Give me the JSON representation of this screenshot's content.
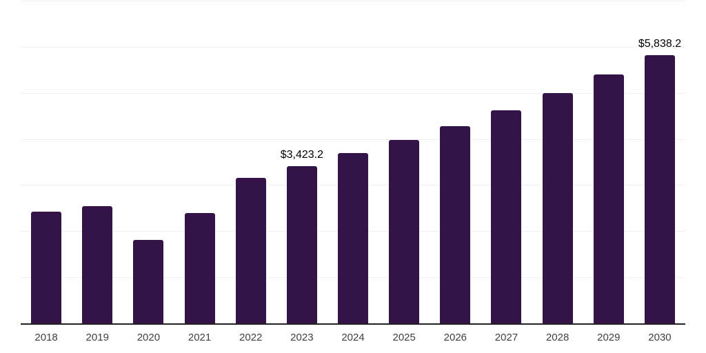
{
  "chart_data": {
    "type": "bar",
    "title": "",
    "categories": [
      "2018",
      "2019",
      "2020",
      "2021",
      "2022",
      "2023",
      "2024",
      "2025",
      "2026",
      "2027",
      "2028",
      "2029",
      "2030"
    ],
    "values": [
      2440,
      2560,
      1825,
      2410,
      3170,
      3423.2,
      3710,
      3995,
      4295,
      4640,
      5010,
      5415,
      5838.2
    ],
    "data_labels": [
      "",
      "",
      "",
      "",
      "",
      "$3,423.2",
      "",
      "",
      "",
      "",
      "",
      "",
      "$5,838.2"
    ],
    "xlabel": "",
    "ylabel": "",
    "ylim": [
      0,
      7000
    ],
    "grid_step": 1000,
    "grid": "horizontal-only",
    "legend": "none",
    "bar_color": "#341349",
    "axis_line_color": "#222222",
    "gridline_color": "#f0f0f0",
    "tick_label_color": "#404040",
    "data_label_color": "#000000"
  }
}
